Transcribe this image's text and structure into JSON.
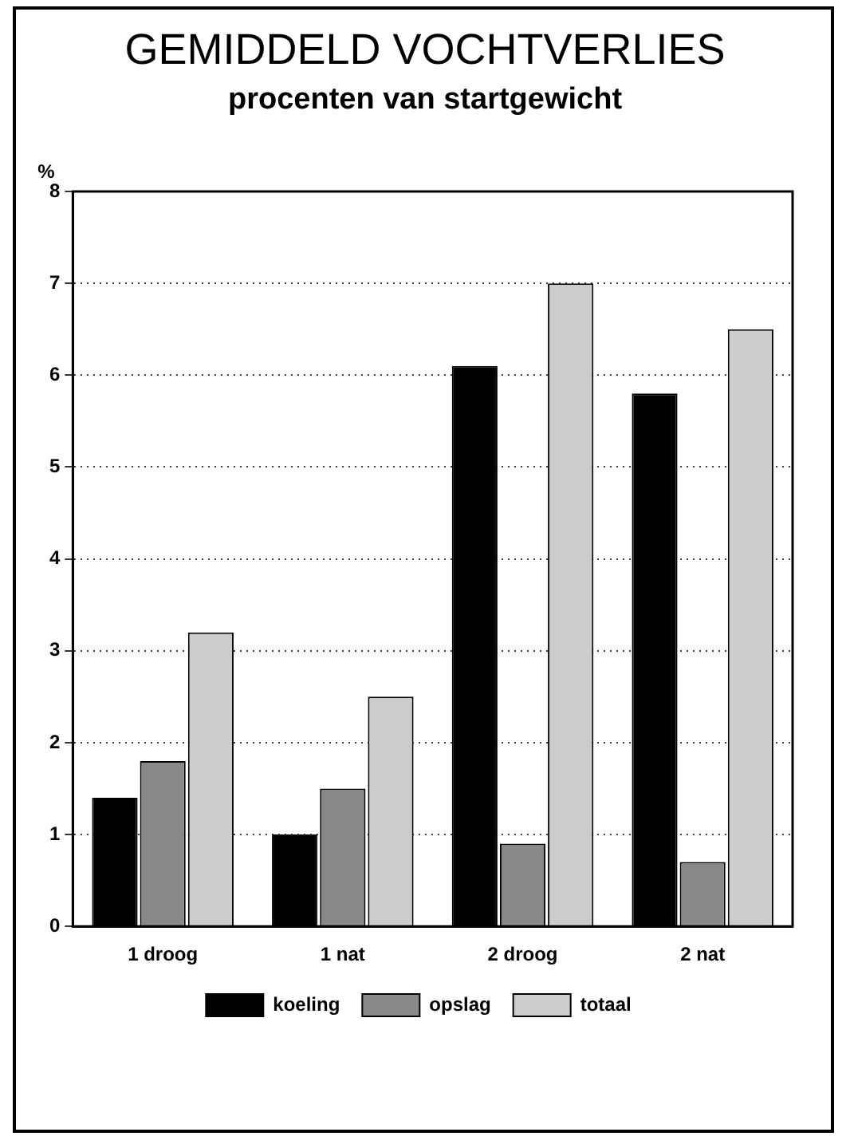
{
  "chart_data": {
    "type": "bar",
    "title": "GEMIDDELD VOCHTVERLIES",
    "subtitle": "procenten van startgewicht",
    "ylabel": "%",
    "categories": [
      "1 droog",
      "1 nat",
      "2 droog",
      "2 nat"
    ],
    "series": [
      {
        "name": "koeling",
        "color": "#000000",
        "values": [
          1.4,
          1.0,
          6.1,
          5.8
        ]
      },
      {
        "name": "opslag",
        "color": "#888888",
        "values": [
          1.8,
          1.5,
          0.9,
          0.7
        ]
      },
      {
        "name": "totaal",
        "color": "#cccccc",
        "values": [
          3.2,
          2.5,
          7.0,
          6.5
        ]
      }
    ],
    "ylim": [
      0,
      8
    ],
    "yticks": [
      0,
      1,
      2,
      3,
      4,
      5,
      6,
      7,
      8
    ],
    "grid": "y",
    "legend": "bottom"
  }
}
